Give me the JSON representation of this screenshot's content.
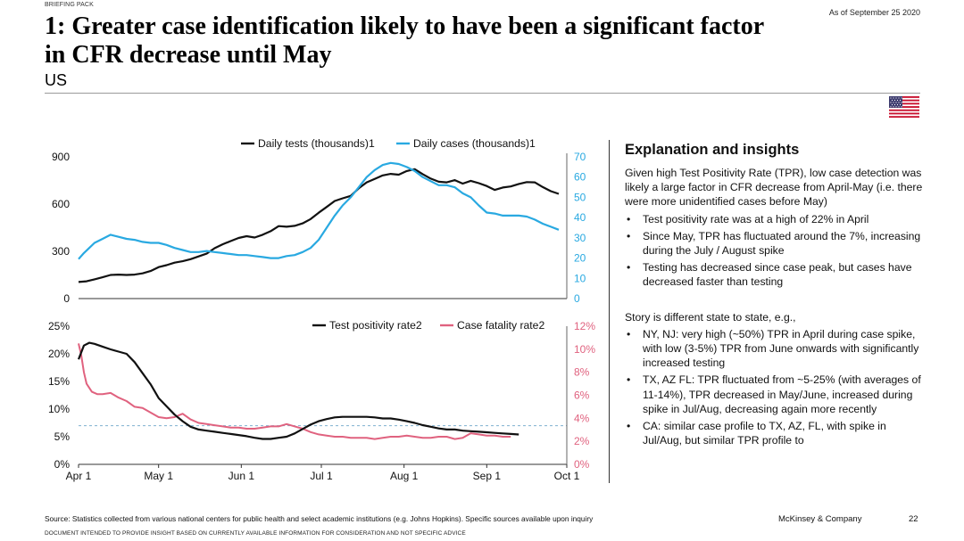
{
  "header": {
    "kicker": "BRIEFING PACK",
    "as_of": "As of September 25 2020",
    "title": "1: Greater case identification likely to have been a significant factor in CFR decrease until May",
    "subtitle": "US"
  },
  "flag_icon": "us-flag-icon",
  "colors": {
    "black_series": "#111111",
    "blue_series": "#29a9e1",
    "pink_series": "#e0627f",
    "dashed_ref": "#7fb1cf",
    "axis_right_blue": "#29a9e1",
    "axis_right_pink": "#e0627f"
  },
  "chart_data": [
    {
      "type": "line",
      "legend": [
        "Daily tests (thousands)1",
        "Daily cases (thousands)1"
      ],
      "y_left_ticks": [
        "900",
        "600",
        "300",
        "0"
      ],
      "y_left_range": [
        0,
        900
      ],
      "y_right_ticks": [
        "70",
        "60",
        "50",
        "40",
        "30",
        "20",
        "10",
        "0"
      ],
      "y_right_range": [
        0,
        70
      ],
      "x_range_days": [
        0,
        183
      ],
      "series": [
        {
          "name": "Daily tests (thousands)1",
          "axis": "left",
          "points": [
            [
              0,
              105
            ],
            [
              3,
              110
            ],
            [
              6,
              122
            ],
            [
              9,
              135
            ],
            [
              12,
              150
            ],
            [
              15,
              152
            ],
            [
              18,
              150
            ],
            [
              21,
              152
            ],
            [
              24,
              160
            ],
            [
              27,
              175
            ],
            [
              30,
              200
            ],
            [
              33,
              212
            ],
            [
              36,
              228
            ],
            [
              39,
              237
            ],
            [
              42,
              250
            ],
            [
              45,
              268
            ],
            [
              48,
              285
            ],
            [
              51,
              320
            ],
            [
              54,
              345
            ],
            [
              57,
              365
            ],
            [
              60,
              385
            ],
            [
              63,
              396
            ],
            [
              66,
              388
            ],
            [
              69,
              405
            ],
            [
              72,
              428
            ],
            [
              75,
              460
            ],
            [
              78,
              456
            ],
            [
              81,
              462
            ],
            [
              84,
              478
            ],
            [
              87,
              505
            ],
            [
              90,
              545
            ],
            [
              93,
              582
            ],
            [
              96,
              620
            ],
            [
              99,
              637
            ],
            [
              102,
              652
            ],
            [
              105,
              700
            ],
            [
              108,
              738
            ],
            [
              111,
              760
            ],
            [
              114,
              782
            ],
            [
              117,
              792
            ],
            [
              120,
              787
            ],
            [
              123,
              810
            ],
            [
              126,
              822
            ],
            [
              129,
              790
            ],
            [
              132,
              762
            ],
            [
              135,
              742
            ],
            [
              138,
              738
            ],
            [
              141,
              752
            ],
            [
              144,
              730
            ],
            [
              147,
              748
            ],
            [
              150,
              733
            ],
            [
              153,
              715
            ],
            [
              156,
              690
            ],
            [
              159,
              705
            ],
            [
              162,
              712
            ],
            [
              165,
              728
            ],
            [
              168,
              740
            ],
            [
              171,
              738
            ],
            [
              174,
              708
            ],
            [
              177,
              682
            ],
            [
              180,
              665
            ]
          ]
        },
        {
          "name": "Daily cases (thousands)1",
          "axis": "right",
          "points": [
            [
              0,
              19.5
            ],
            [
              2,
              22.5
            ],
            [
              4,
              25
            ],
            [
              6,
              27.5
            ],
            [
              9,
              29.5
            ],
            [
              12,
              31.5
            ],
            [
              15,
              30.5
            ],
            [
              18,
              29.5
            ],
            [
              21,
              29
            ],
            [
              24,
              28
            ],
            [
              27,
              27.5
            ],
            [
              30,
              27.5
            ],
            [
              33,
              26.5
            ],
            [
              36,
              25
            ],
            [
              39,
              24
            ],
            [
              42,
              23
            ],
            [
              45,
              23
            ],
            [
              48,
              23.5
            ],
            [
              51,
              23
            ],
            [
              54,
              22.5
            ],
            [
              57,
              22
            ],
            [
              60,
              21.5
            ],
            [
              63,
              21.5
            ],
            [
              66,
              21
            ],
            [
              69,
              20.5
            ],
            [
              72,
              20
            ],
            [
              75,
              20
            ],
            [
              78,
              21
            ],
            [
              81,
              21.5
            ],
            [
              84,
              23
            ],
            [
              87,
              25
            ],
            [
              90,
              29
            ],
            [
              93,
              35
            ],
            [
              96,
              41
            ],
            [
              99,
              46
            ],
            [
              102,
              50
            ],
            [
              105,
              55
            ],
            [
              108,
              60
            ],
            [
              111,
              63.5
            ],
            [
              114,
              66
            ],
            [
              117,
              67
            ],
            [
              120,
              66.5
            ],
            [
              123,
              65
            ],
            [
              126,
              63
            ],
            [
              129,
              60
            ],
            [
              132,
              58
            ],
            [
              135,
              56
            ],
            [
              138,
              56
            ],
            [
              141,
              55
            ],
            [
              144,
              52
            ],
            [
              147,
              50
            ],
            [
              150,
              46
            ],
            [
              153,
              42.5
            ],
            [
              156,
              42
            ],
            [
              159,
              41
            ],
            [
              162,
              41
            ],
            [
              165,
              41
            ],
            [
              168,
              40.5
            ],
            [
              171,
              39
            ],
            [
              174,
              37
            ],
            [
              177,
              35.5
            ],
            [
              180,
              34
            ]
          ]
        }
      ]
    },
    {
      "type": "line",
      "legend": [
        "Test positivity rate2",
        "Case fatality rate2"
      ],
      "y_left_ticks": [
        "25%",
        "20%",
        "15%",
        "10%",
        "5%",
        "0%"
      ],
      "y_left_range": [
        0,
        25
      ],
      "y_right_ticks": [
        "12%",
        "10%",
        "8%",
        "6%",
        "4%",
        "2%",
        "0%"
      ],
      "y_right_range": [
        0,
        12
      ],
      "x_ticks": [
        "Apr 1",
        "May 1",
        "Jun 1",
        "Jul 1",
        "Aug 1",
        "Sep 1",
        "Oct 1"
      ],
      "x_tick_days": [
        0,
        30,
        61,
        91,
        122,
        153,
        183
      ],
      "reference_line_left_value": 7,
      "series": [
        {
          "name": "Test positivity rate2",
          "axis": "left",
          "points": [
            [
              0,
              19
            ],
            [
              2,
              21.5
            ],
            [
              4,
              22
            ],
            [
              6,
              21.8
            ],
            [
              9,
              21.3
            ],
            [
              12,
              20.8
            ],
            [
              15,
              20.4
            ],
            [
              18,
              20
            ],
            [
              21,
              18.5
            ],
            [
              24,
              16.5
            ],
            [
              27,
              14.5
            ],
            [
              30,
              12
            ],
            [
              33,
              10.5
            ],
            [
              36,
              9
            ],
            [
              39,
              7.8
            ],
            [
              42,
              6.8
            ],
            [
              45,
              6.3
            ],
            [
              48,
              6.1
            ],
            [
              51,
              5.9
            ],
            [
              54,
              5.7
            ],
            [
              57,
              5.5
            ],
            [
              60,
              5.3
            ],
            [
              63,
              5.1
            ],
            [
              66,
              4.8
            ],
            [
              69,
              4.6
            ],
            [
              72,
              4.6
            ],
            [
              75,
              4.8
            ],
            [
              78,
              5
            ],
            [
              81,
              5.6
            ],
            [
              84,
              6.4
            ],
            [
              87,
              7.2
            ],
            [
              90,
              7.8
            ],
            [
              93,
              8.2
            ],
            [
              96,
              8.5
            ],
            [
              99,
              8.6
            ],
            [
              102,
              8.6
            ],
            [
              105,
              8.6
            ],
            [
              108,
              8.6
            ],
            [
              111,
              8.5
            ],
            [
              114,
              8.3
            ],
            [
              117,
              8.3
            ],
            [
              120,
              8.1
            ],
            [
              123,
              7.8
            ],
            [
              126,
              7.5
            ],
            [
              129,
              7.1
            ],
            [
              132,
              6.8
            ],
            [
              135,
              6.5
            ],
            [
              138,
              6.3
            ],
            [
              141,
              6.3
            ],
            [
              144,
              6.1
            ],
            [
              147,
              6
            ],
            [
              150,
              5.9
            ],
            [
              153,
              5.8
            ],
            [
              156,
              5.7
            ],
            [
              159,
              5.6
            ],
            [
              162,
              5.5
            ],
            [
              165,
              5.4
            ]
          ]
        },
        {
          "name": "Case fatality rate2",
          "axis": "right",
          "points": [
            [
              0,
              10.5
            ],
            [
              1,
              9.5
            ],
            [
              2,
              8
            ],
            [
              3,
              7
            ],
            [
              5,
              6.3
            ],
            [
              7,
              6.1
            ],
            [
              9,
              6.1
            ],
            [
              12,
              6.2
            ],
            [
              15,
              5.8
            ],
            [
              18,
              5.5
            ],
            [
              21,
              5
            ],
            [
              24,
              4.9
            ],
            [
              27,
              4.5
            ],
            [
              30,
              4.1
            ],
            [
              33,
              4
            ],
            [
              36,
              4.1
            ],
            [
              39,
              4.4
            ],
            [
              42,
              3.9
            ],
            [
              45,
              3.6
            ],
            [
              48,
              3.5
            ],
            [
              51,
              3.4
            ],
            [
              54,
              3.3
            ],
            [
              57,
              3.2
            ],
            [
              60,
              3.2
            ],
            [
              63,
              3.1
            ],
            [
              66,
              3.1
            ],
            [
              69,
              3.2
            ],
            [
              72,
              3.3
            ],
            [
              75,
              3.3
            ],
            [
              78,
              3.5
            ],
            [
              81,
              3.3
            ],
            [
              84,
              3.1
            ],
            [
              87,
              2.8
            ],
            [
              90,
              2.6
            ],
            [
              93,
              2.5
            ],
            [
              96,
              2.4
            ],
            [
              99,
              2.4
            ],
            [
              102,
              2.3
            ],
            [
              105,
              2.3
            ],
            [
              108,
              2.3
            ],
            [
              111,
              2.2
            ],
            [
              114,
              2.3
            ],
            [
              117,
              2.4
            ],
            [
              120,
              2.4
            ],
            [
              123,
              2.5
            ],
            [
              126,
              2.4
            ],
            [
              129,
              2.3
            ],
            [
              132,
              2.3
            ],
            [
              135,
              2.4
            ],
            [
              138,
              2.4
            ],
            [
              141,
              2.2
            ],
            [
              144,
              2.3
            ],
            [
              147,
              2.7
            ],
            [
              150,
              2.6
            ],
            [
              153,
              2.5
            ],
            [
              156,
              2.5
            ],
            [
              159,
              2.4
            ],
            [
              162,
              2.4
            ]
          ]
        }
      ]
    }
  ],
  "insights": {
    "heading": "Explanation and insights",
    "intro": "Given high Test Positivity Rate (TPR), low case detection was likely a large factor in CFR decrease from April-May (i.e. there were more unidentified cases before May)",
    "bullets1": [
      "Test positivity rate was at a high of 22% in April",
      "Since May, TPR has fluctuated around the 7%, increasing during the July / August spike",
      "Testing has decreased since case peak, but cases have decreased faster than testing"
    ],
    "intro2": "Story is different state to state, e.g.,",
    "bullets2": [
      "NY, NJ: very high (~50%) TPR in April during case spike, with low (3-5%) TPR from June onwards with significantly increased testing",
      "TX, AZ FL: TPR fluctuated from ~5-25% (with averages of 11-14%), TPR decreased in May/June, increased during spike in Jul/Aug, decreasing again more recently",
      "CA: similar case profile to TX, AZ, FL, with spike in Jul/Aug, but similar TPR profile to"
    ]
  },
  "footer": {
    "source": "Source: Statistics collected from various national centers for public health and select academic institutions (e.g. Johns Hopkins). Specific sources available upon inquiry",
    "disclaimer": "DOCUMENT INTENDED TO PROVIDE INSIGHT BASED ON CURRENTLY AVAILABLE INFORMATION FOR CONSIDERATION AND NOT SPECIFIC ADVICE",
    "company": "McKinsey & Company",
    "page": "22"
  }
}
